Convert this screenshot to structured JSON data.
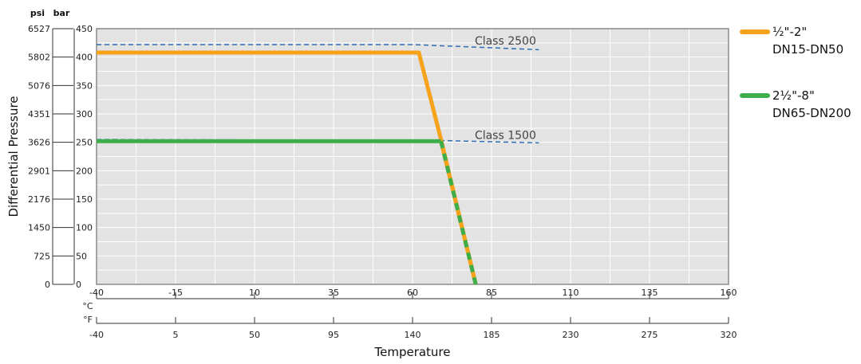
{
  "chart_data": {
    "type": "line",
    "ylabel": "Differential Pressure",
    "xlabel": "Temperature",
    "y_units": {
      "psi": "psi",
      "bar": "bar"
    },
    "y_bar_ticks": [
      "0",
      "50",
      "100",
      "150",
      "200",
      "250",
      "300",
      "350",
      "400",
      "450"
    ],
    "y_psi_ticks": [
      "0",
      "725",
      "1450",
      "2176",
      "2901",
      "3626",
      "4351",
      "5076",
      "5802",
      "6527"
    ],
    "ylim_bar": [
      0,
      450
    ],
    "x_c_unit": "°C",
    "x_f_unit": "°F",
    "x_c_ticks": [
      "-40",
      "-15",
      "10",
      "35",
      "60",
      "85",
      "110",
      "135",
      "160"
    ],
    "x_f_ticks": [
      "-40",
      "5",
      "50",
      "95",
      "140",
      "185",
      "230",
      "275",
      "320"
    ],
    "xlim_c": [
      -40,
      160
    ],
    "grid": true,
    "legend_position": "right",
    "series": [
      {
        "label_lines": [
          "½\"-2\"",
          "DN15-DN50"
        ],
        "color": "#F7A21B",
        "style": "solid",
        "points": [
          [
            -40,
            408
          ],
          [
            62,
            408
          ],
          [
            69,
            255
          ],
          [
            80,
            0
          ]
        ]
      },
      {
        "label_lines": [
          "2½\"-8\"",
          "DN65-DN200"
        ],
        "color": "#3DAE49",
        "dash_color": "#F7A21B",
        "style": "solid-with-dashed-tail",
        "points": [
          [
            -40,
            252
          ],
          [
            69,
            252
          ],
          [
            80,
            0
          ]
        ]
      }
    ],
    "reference_lines": [
      {
        "label": "Class 2500",
        "color": "#2E6DB5",
        "style": "dashed",
        "points": [
          [
            -40,
            422
          ],
          [
            60,
            422
          ],
          [
            100,
            413
          ]
        ]
      },
      {
        "label": "Class 1500",
        "color": "#2E6DB5",
        "style": "dashed",
        "points": [
          [
            -40,
            255
          ],
          [
            70,
            253
          ],
          [
            100,
            249
          ]
        ]
      }
    ]
  }
}
